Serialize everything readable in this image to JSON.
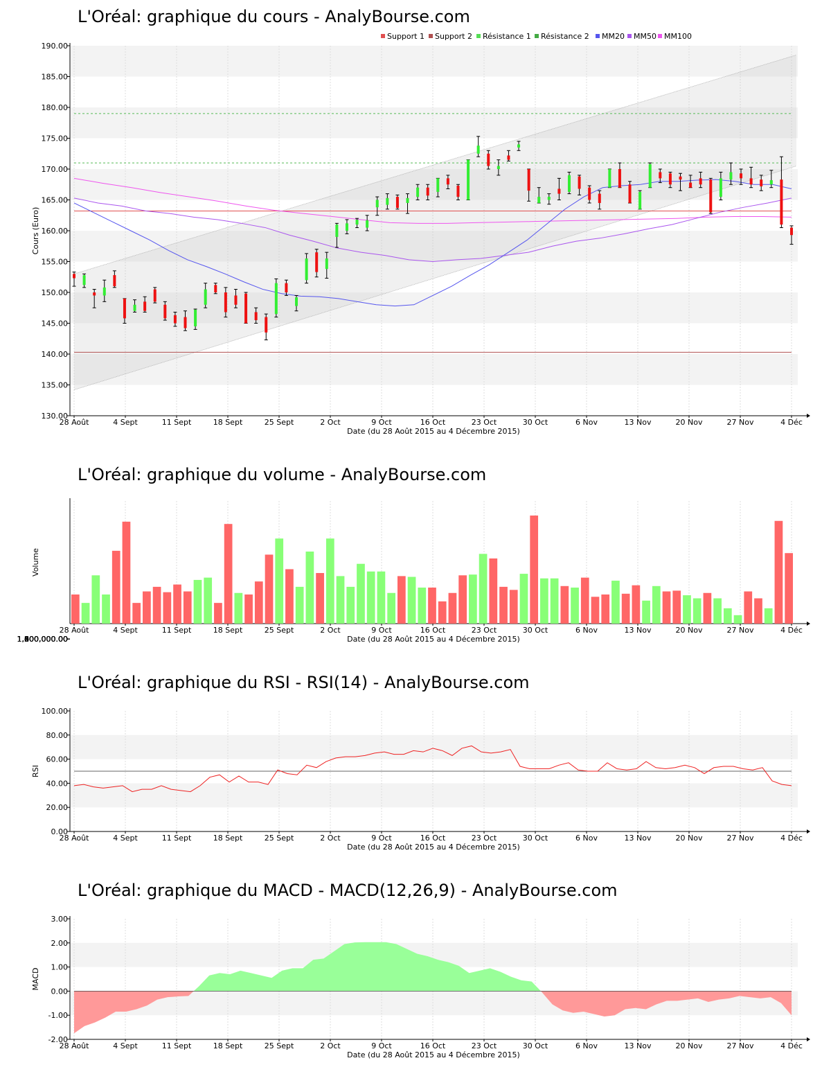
{
  "charts": {
    "price": {
      "title": "L'Oréal: graphique du cours - AnalyBourse.com",
      "ylabel": "Cours (Euro)",
      "xlabel": "Date (du 28 Août 2015 au 4 Décembre 2015)",
      "yticks": [
        "130.00",
        "135.00",
        "140.00",
        "145.00",
        "150.00",
        "155.00",
        "160.00",
        "165.00",
        "170.00",
        "175.00",
        "180.00",
        "185.00",
        "190.00"
      ],
      "legend": [
        {
          "name": "Support 1",
          "color": "#e05050"
        },
        {
          "name": "Support 2",
          "color": "#b05050"
        },
        {
          "name": "Résistance 1",
          "color": "#55dd55"
        },
        {
          "name": "Résistance 2",
          "color": "#44aa44"
        },
        {
          "name": "MM20",
          "color": "#5555ee"
        },
        {
          "name": "MM50",
          "color": "#aa55ee"
        },
        {
          "name": "MM100",
          "color": "#ee55ee"
        }
      ]
    },
    "volume": {
      "title": "L'Oréal: graphique du volume - AnalyBourse.com",
      "ylabel": "Volume",
      "xlabel": "Date (du 28 Août 2015 au 4 Décembre 2015)",
      "yticks": [
        "200,000.00",
        "400,000.00",
        "600,000.00",
        "800,000.00",
        "1,000,000.00",
        "1,200,000.00",
        "1,400,000.00",
        "1,600,000.00",
        "1,800,000.00"
      ]
    },
    "rsi": {
      "title": "L'Oréal: graphique du RSI - RSI(14) - AnalyBourse.com",
      "ylabel": "RSI",
      "xlabel": "Date (du 28 Août 2015 au 4 Décembre 2015)",
      "yticks": [
        "0.00",
        "20.00",
        "40.00",
        "60.00",
        "80.00",
        "100.00"
      ]
    },
    "macd": {
      "title": "L'Oréal: graphique du MACD - MACD(12,26,9) - AnalyBourse.com",
      "ylabel": "MACD",
      "xlabel": "Date (du 28 Août 2015 au 4 Décembre 2015)",
      "yticks": [
        "-2.00",
        "-1.00",
        "0.00",
        "1.00",
        "2.00",
        "3.00"
      ]
    },
    "xticks": [
      "28 Août",
      "4 Sept",
      "11 Sept",
      "18 Sept",
      "25 Sept",
      "2 Oct",
      "9 Oct",
      "16 Oct",
      "23 Oct",
      "30 Oct",
      "6 Nov",
      "13 Nov",
      "20 Nov",
      "27 Nov",
      "4 Déc"
    ]
  },
  "chart_data": [
    {
      "type": "candlestick",
      "title": "L'Oréal: graphique du cours - AnalyBourse.com",
      "ylabel": "Cours (Euro)",
      "xlabel": "Date (du 28 Août 2015 au 4 Décembre 2015)",
      "ylim": [
        130,
        190
      ],
      "grid": true,
      "legend_placement": "top-right",
      "candles": [
        [
          153.0,
          152.3,
          153.3,
          151.0
        ],
        [
          151.2,
          152.8,
          153.0,
          150.8
        ],
        [
          150.0,
          149.5,
          150.5,
          147.5
        ],
        [
          149.5,
          150.8,
          152.0,
          148.5
        ],
        [
          152.8,
          151.0,
          153.5,
          150.8
        ],
        [
          149.0,
          145.8,
          149.0,
          145.0
        ],
        [
          147.0,
          148.0,
          148.8,
          146.8
        ],
        [
          148.5,
          147.0,
          149.3,
          146.8
        ],
        [
          150.5,
          148.5,
          150.8,
          148.3
        ],
        [
          148.0,
          145.8,
          148.5,
          145.5
        ],
        [
          146.3,
          145.0,
          146.8,
          144.5
        ],
        [
          146.0,
          144.2,
          147.0,
          143.8
        ],
        [
          144.5,
          147.2,
          147.3,
          144.0
        ],
        [
          148.0,
          150.5,
          151.5,
          147.5
        ],
        [
          151.2,
          150.0,
          151.5,
          149.8
        ],
        [
          150.0,
          146.8,
          150.8,
          146.0
        ],
        [
          149.5,
          148.0,
          150.5,
          147.5
        ],
        [
          149.8,
          145.0,
          150.0,
          145.0
        ],
        [
          146.8,
          145.5,
          147.5,
          145.0
        ],
        [
          146.0,
          143.5,
          146.5,
          142.3
        ],
        [
          146.5,
          151.5,
          152.2,
          146.0
        ],
        [
          151.5,
          150.0,
          152.0,
          149.5
        ],
        [
          147.8,
          149.2,
          149.5,
          147.0
        ],
        [
          152.0,
          155.5,
          156.3,
          151.5
        ],
        [
          156.5,
          153.3,
          157.0,
          152.5
        ],
        [
          153.8,
          155.5,
          156.5,
          152.3
        ],
        [
          159.0,
          161.0,
          161.2,
          157.3
        ],
        [
          160.0,
          161.2,
          161.8,
          159.5
        ],
        [
          161.0,
          161.8,
          162.0,
          160.5
        ],
        [
          160.5,
          161.7,
          162.5,
          160.0
        ],
        [
          163.8,
          165.0,
          165.5,
          162.5
        ],
        [
          164.2,
          165.3,
          166.0,
          163.5
        ],
        [
          165.5,
          163.7,
          165.8,
          163.5
        ],
        [
          164.5,
          165.3,
          166.0,
          162.8
        ],
        [
          165.5,
          167.0,
          167.5,
          165.0
        ],
        [
          167.0,
          165.7,
          167.5,
          165.0
        ],
        [
          166.3,
          168.5,
          168.5,
          165.5
        ],
        [
          168.5,
          167.5,
          169.0,
          166.8
        ],
        [
          167.3,
          165.5,
          167.5,
          165.0
        ],
        [
          165.0,
          171.5,
          171.5,
          165.0
        ],
        [
          172.5,
          173.8,
          175.3,
          172.0
        ],
        [
          172.5,
          170.5,
          173.0,
          170.0
        ],
        [
          170.0,
          170.5,
          171.5,
          169.0
        ],
        [
          172.2,
          171.5,
          173.0,
          171.3
        ],
        [
          173.5,
          174.0,
          174.5,
          173.0
        ],
        [
          170.0,
          166.5,
          170.0,
          164.8
        ],
        [
          164.5,
          165.5,
          167.0,
          164.5
        ],
        [
          165.0,
          165.5,
          166.0,
          164.3
        ],
        [
          166.8,
          166.0,
          168.5,
          165.0
        ],
        [
          166.3,
          169.0,
          169.5,
          166.0
        ],
        [
          168.8,
          166.8,
          169.0,
          165.8
        ],
        [
          167.0,
          165.0,
          167.3,
          164.5
        ],
        [
          166.0,
          164.5,
          166.5,
          163.5
        ],
        [
          167.0,
          170.0,
          170.0,
          167.0
        ],
        [
          170.0,
          167.0,
          171.0,
          167.0
        ],
        [
          167.5,
          164.5,
          168.0,
          164.5
        ],
        [
          163.5,
          166.3,
          166.5,
          163.5
        ],
        [
          167.0,
          170.8,
          171.0,
          167.0
        ],
        [
          169.5,
          168.5,
          170.0,
          167.8
        ],
        [
          169.3,
          167.5,
          169.5,
          167.0
        ],
        [
          168.8,
          168.3,
          169.3,
          166.5
        ],
        [
          167.8,
          167.0,
          169.0,
          167.0
        ],
        [
          168.5,
          167.5,
          169.5,
          167.0
        ],
        [
          168.3,
          163.0,
          168.5,
          162.8
        ],
        [
          165.5,
          168.5,
          169.5,
          165.0
        ],
        [
          168.3,
          169.5,
          171.0,
          167.5
        ],
        [
          169.3,
          168.5,
          170.0,
          167.5
        ],
        [
          168.5,
          167.5,
          170.3,
          167.0
        ],
        [
          168.3,
          167.2,
          169.0,
          166.5
        ],
        [
          167.5,
          168.2,
          169.8,
          167.0
        ],
        [
          168.3,
          161.0,
          172.0,
          160.5
        ],
        [
          160.5,
          159.3,
          160.8,
          157.8
        ]
      ],
      "lines": {
        "support1": 163.2,
        "support2": 140.3,
        "resistance1": 171.0,
        "resistance2": 179.0,
        "channel_lower": [
          134.2,
          170.5
        ],
        "channel_upper": [
          153.0,
          188.5
        ],
        "MM20": [
          164.5,
          163.0,
          161.5,
          160.0,
          158.5,
          156.8,
          155.3,
          154.2,
          153.0,
          151.7,
          150.5,
          149.8,
          149.4,
          149.3,
          149.0,
          148.5,
          148.0,
          147.8,
          148.0,
          149.5,
          151.0,
          152.8,
          154.5,
          156.5,
          158.5,
          161.0,
          163.5,
          165.5,
          167.0,
          167.3,
          167.5,
          168.0,
          168.0,
          168.2,
          168.3,
          168.0,
          167.5,
          167.5,
          166.8
        ],
        "MM50": [
          165.3,
          164.5,
          164.0,
          163.2,
          162.8,
          162.2,
          161.8,
          161.2,
          160.5,
          159.3,
          158.3,
          157.2,
          156.5,
          156.0,
          155.3,
          155.0,
          155.3,
          155.5,
          156.0,
          156.5,
          157.5,
          158.3,
          158.8,
          159.5,
          160.3,
          161.0,
          162.0,
          163.0,
          163.8,
          164.5,
          165.3
        ],
        "MM100": [
          168.5,
          167.7,
          167.0,
          166.2,
          165.5,
          164.8,
          164.0,
          163.3,
          162.8,
          162.3,
          161.8,
          161.3,
          161.2,
          161.2,
          161.3,
          161.4,
          161.5,
          161.6,
          161.7,
          161.8,
          161.9,
          162.0,
          162.2,
          162.3,
          162.3,
          162.2
        ]
      }
    },
    {
      "type": "bar",
      "title": "L'Oréal: graphique du volume - AnalyBourse.com",
      "ylabel": "Volume",
      "xlabel": "Date (du 28 Août 2015 au 4 Décembre 2015)",
      "ylim": [
        200000,
        1800000
      ],
      "values": [
        580000,
        470000,
        830000,
        580000,
        1150000,
        1530000,
        470000,
        620000,
        680000,
        610000,
        710000,
        620000,
        770000,
        800000,
        470000,
        1500000,
        600000,
        580000,
        750000,
        1100000,
        1310000,
        910000,
        680000,
        1140000,
        860000,
        1310000,
        820000,
        680000,
        980000,
        880000,
        880000,
        600000,
        820000,
        810000,
        670000,
        670000,
        490000,
        600000,
        830000,
        840000,
        1110000,
        1050000,
        680000,
        640000,
        850000,
        1610000,
        790000,
        790000,
        690000,
        670000,
        800000,
        550000,
        580000,
        760000,
        590000,
        700000,
        500000,
        690000,
        620000,
        630000,
        570000,
        530000,
        600000,
        530000,
        400000,
        310000,
        620000,
        530000,
        400000,
        1540000,
        1120000
      ],
      "colors": [
        "r",
        "g",
        "g",
        "g",
        "r",
        "r",
        "r",
        "r",
        "r",
        "r",
        "r",
        "r",
        "g",
        "g",
        "r",
        "r",
        "g",
        "r",
        "r",
        "r",
        "g",
        "r",
        "g",
        "g",
        "r",
        "g",
        "g",
        "g",
        "g",
        "g",
        "g",
        "g",
        "r",
        "g",
        "g",
        "r",
        "r",
        "r",
        "r",
        "g",
        "g",
        "r",
        "r",
        "r",
        "g",
        "r",
        "g",
        "g",
        "r",
        "g",
        "r",
        "r",
        "r",
        "g",
        "r",
        "r",
        "g",
        "g",
        "r",
        "r",
        "g",
        "g",
        "r",
        "g",
        "g",
        "g",
        "r",
        "r",
        "g",
        "r",
        "r"
      ]
    },
    {
      "type": "line",
      "title": "L'Oréal: graphique du RSI - RSI(14) - AnalyBourse.com",
      "ylabel": "RSI",
      "xlabel": "Date (du 28 Août 2015 au 4 Décembre 2015)",
      "ylim": [
        0,
        100
      ],
      "reference_line": 50,
      "values": [
        38,
        39,
        37,
        36,
        37,
        38,
        33,
        35,
        35,
        38,
        35,
        34,
        33,
        38,
        45,
        47,
        41,
        46,
        41,
        41,
        39,
        51,
        48,
        47,
        55,
        53,
        58,
        61,
        62,
        62,
        63,
        65,
        66,
        64,
        64,
        67,
        66,
        69,
        67,
        63,
        69,
        71,
        66,
        65,
        66,
        68,
        54,
        52,
        52,
        52,
        55,
        57,
        51,
        50,
        50,
        57,
        52,
        51,
        52,
        58,
        53,
        52,
        53,
        55,
        53,
        48,
        53,
        54,
        54,
        52,
        51,
        53,
        42,
        39,
        38
      ]
    },
    {
      "type": "area",
      "title": "L'Oréal: graphique du MACD - MACD(12,26,9) - AnalyBourse.com",
      "ylabel": "MACD",
      "xlabel": "Date (du 28 Août 2015 au 4 Décembre 2015)",
      "ylim": [
        -2,
        3
      ],
      "values": [
        -1.75,
        -1.45,
        -1.3,
        -1.1,
        -0.85,
        -0.85,
        -0.75,
        -0.6,
        -0.35,
        -0.25,
        -0.22,
        -0.2,
        0.2,
        0.65,
        0.75,
        0.7,
        0.85,
        0.75,
        0.65,
        0.55,
        0.85,
        0.95,
        0.95,
        1.3,
        1.35,
        1.65,
        1.95,
        2.02,
        2.03,
        2.03,
        2.03,
        1.95,
        1.75,
        1.55,
        1.45,
        1.3,
        1.2,
        1.05,
        0.75,
        0.85,
        0.95,
        0.8,
        0.6,
        0.45,
        0.4,
        -0.05,
        -0.55,
        -0.8,
        -0.9,
        -0.85,
        -0.95,
        -1.05,
        -1.0,
        -0.75,
        -0.7,
        -0.75,
        -0.55,
        -0.4,
        -0.4,
        -0.35,
        -0.3,
        -0.45,
        -0.35,
        -0.3,
        -0.2,
        -0.25,
        -0.3,
        -0.25,
        -0.5,
        -1.0
      ]
    }
  ]
}
